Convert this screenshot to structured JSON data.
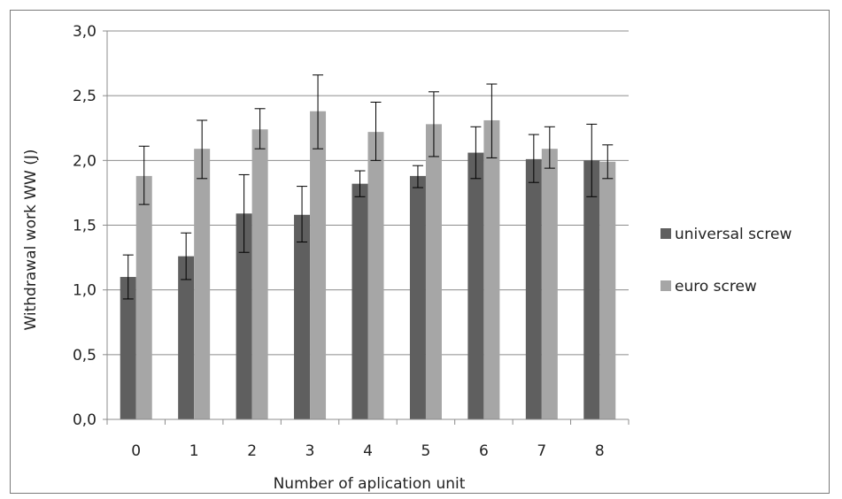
{
  "chart_data": {
    "type": "bar",
    "title": "",
    "xlabel": "Number of aplication unit",
    "ylabel": "Withdrawal work WW (J)",
    "categories": [
      "0",
      "1",
      "2",
      "3",
      "4",
      "5",
      "6",
      "7",
      "8"
    ],
    "ylim": [
      0,
      3.0
    ],
    "yticks": [
      "0,0",
      "0,5",
      "1,0",
      "1,5",
      "2,0",
      "2,5",
      "3,0"
    ],
    "grid": true,
    "legend_position": "right",
    "series": [
      {
        "name": "universal screw",
        "color": "#5f5f5f",
        "values": [
          1.1,
          1.26,
          1.59,
          1.58,
          1.82,
          1.88,
          2.06,
          2.01,
          2.0
        ],
        "err_low": [
          0.93,
          1.08,
          1.29,
          1.37,
          1.72,
          1.79,
          1.86,
          1.83,
          1.72
        ],
        "err_high": [
          1.27,
          1.44,
          1.89,
          1.8,
          1.92,
          1.96,
          2.26,
          2.2,
          2.28
        ]
      },
      {
        "name": "euro screw",
        "color": "#a6a6a6",
        "values": [
          1.88,
          2.09,
          2.24,
          2.38,
          2.22,
          2.28,
          2.31,
          2.09,
          1.99
        ],
        "err_low": [
          1.66,
          1.86,
          2.09,
          2.09,
          2.0,
          2.03,
          2.02,
          1.94,
          1.86
        ],
        "err_high": [
          2.11,
          2.31,
          2.4,
          2.66,
          2.45,
          2.53,
          2.59,
          2.26,
          2.12
        ]
      }
    ]
  }
}
